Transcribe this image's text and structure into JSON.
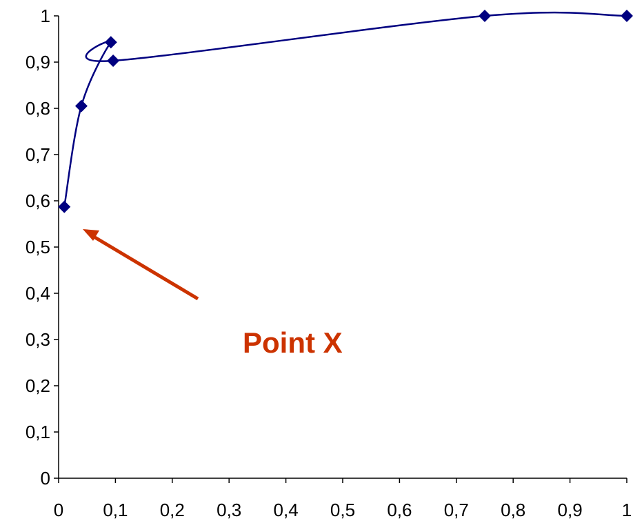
{
  "chart_data": {
    "type": "line",
    "title": "",
    "xlabel": "",
    "ylabel": "",
    "xlim": [
      0,
      1
    ],
    "ylim": [
      0,
      1
    ],
    "x_ticks": [
      "0",
      "0,1",
      "0,2",
      "0,3",
      "0,4",
      "0,5",
      "0,6",
      "0,7",
      "0,8",
      "0,9",
      "1"
    ],
    "y_ticks": [
      "0",
      "0,1",
      "0,2",
      "0,3",
      "0,4",
      "0,5",
      "0,6",
      "0,7",
      "0,8",
      "0,9",
      "1"
    ],
    "grid": false,
    "legend": "none",
    "series": [
      {
        "color": "#000080",
        "marker": "diamond",
        "smooth": true,
        "points": [
          {
            "x": 0.01,
            "y": 0.587
          },
          {
            "x": 0.04,
            "y": 0.805
          },
          {
            "x": 0.092,
            "y": 0.943
          },
          {
            "x": 0.096,
            "y": 0.903
          },
          {
            "x": 0.75,
            "y": 1.0
          },
          {
            "x": 1.0,
            "y": 1.0
          }
        ]
      }
    ],
    "annotations": [
      {
        "text": "Point X",
        "color": "#cc3300",
        "points_to": {
          "x": 0.01,
          "y": 0.587
        }
      }
    ]
  }
}
